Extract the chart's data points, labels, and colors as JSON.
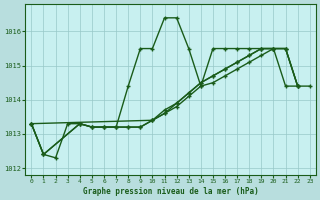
{
  "title": "Graphe pression niveau de la mer (hPa)",
  "bg_color": "#b8dede",
  "plot_bg_color": "#c8f0f0",
  "line_color": "#1a5c1a",
  "grid_color": "#98c8c8",
  "xlim": [
    -0.5,
    23.5
  ],
  "ylim": [
    1011.8,
    1016.8
  ],
  "yticks": [
    1012,
    1013,
    1014,
    1015,
    1016
  ],
  "xticks": [
    0,
    1,
    2,
    3,
    4,
    5,
    6,
    7,
    8,
    9,
    10,
    11,
    12,
    13,
    14,
    15,
    16,
    17,
    18,
    19,
    20,
    21,
    22,
    23
  ],
  "series": [
    {
      "x": [
        0,
        1,
        2,
        3,
        4,
        5,
        6,
        7,
        8,
        9,
        10,
        11,
        12,
        13,
        14,
        15,
        16,
        17,
        18,
        19,
        20,
        21,
        22
      ],
      "y": [
        1013.3,
        1012.4,
        1012.3,
        1013.3,
        1013.3,
        1013.2,
        1013.2,
        1013.2,
        1014.4,
        1015.5,
        1015.5,
        1016.4,
        1016.4,
        1015.5,
        1014.4,
        1015.5,
        1015.5,
        1015.5,
        1015.5,
        1015.5,
        1015.5,
        1014.4,
        1014.4
      ]
    },
    {
      "x": [
        0,
        1,
        4,
        5,
        6,
        7,
        8,
        9,
        10,
        11,
        12,
        13,
        14,
        15,
        16,
        17,
        18,
        19,
        20,
        21,
        22
      ],
      "y": [
        1013.3,
        1012.4,
        1013.3,
        1013.2,
        1013.2,
        1013.2,
        1013.2,
        1013.2,
        1013.4,
        1013.6,
        1013.8,
        1014.1,
        1014.4,
        1014.5,
        1014.7,
        1014.9,
        1015.1,
        1015.3,
        1015.5,
        1015.5,
        1014.4
      ]
    },
    {
      "x": [
        0,
        1,
        4,
        5,
        6,
        7,
        8,
        9,
        10,
        11,
        12,
        13,
        14,
        15,
        16,
        17,
        18,
        19,
        20,
        21,
        22
      ],
      "y": [
        1013.3,
        1012.4,
        1013.3,
        1013.2,
        1013.2,
        1013.2,
        1013.2,
        1013.2,
        1013.4,
        1013.7,
        1013.9,
        1014.2,
        1014.5,
        1014.7,
        1014.9,
        1015.1,
        1015.3,
        1015.5,
        1015.5,
        1015.5,
        1014.4
      ]
    },
    {
      "x": [
        0,
        10,
        11,
        12,
        13,
        14,
        15,
        16,
        17,
        18,
        19,
        20,
        21,
        22,
        23
      ],
      "y": [
        1013.3,
        1013.4,
        1013.6,
        1013.9,
        1014.2,
        1014.5,
        1014.7,
        1014.9,
        1015.1,
        1015.3,
        1015.5,
        1015.5,
        1015.5,
        1014.4,
        1014.4
      ]
    }
  ],
  "marker_size": 3.0,
  "linewidth": 1.0
}
